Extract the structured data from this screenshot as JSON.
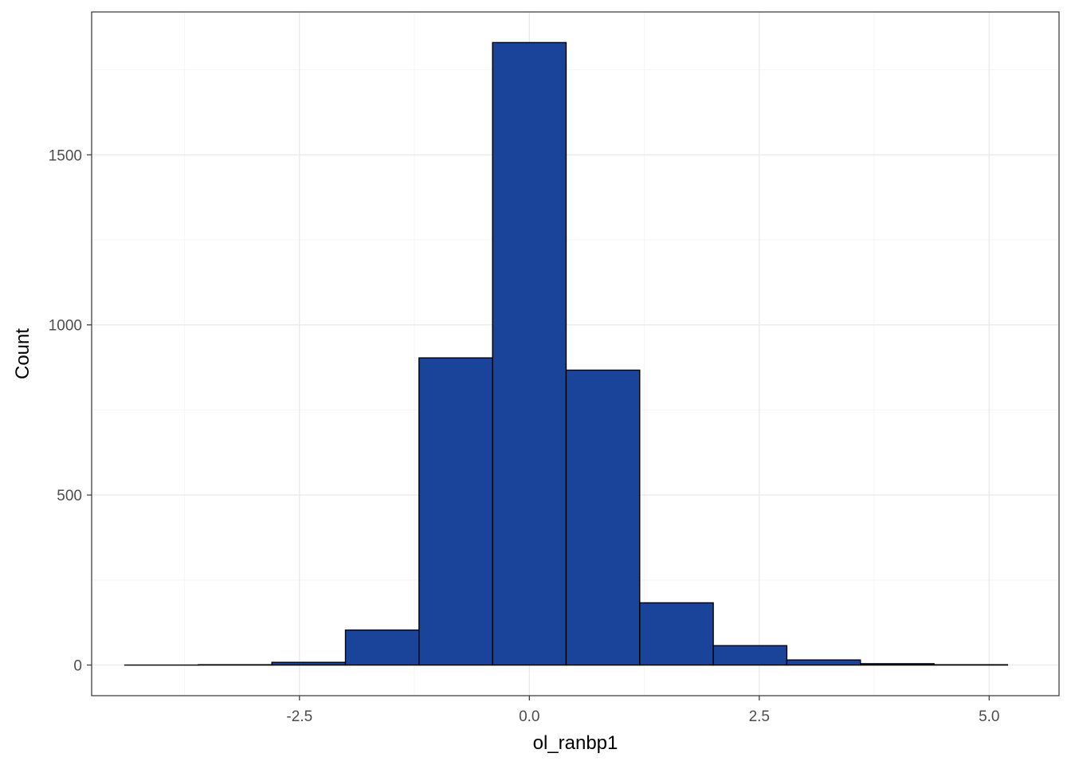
{
  "chart_data": {
    "type": "bar",
    "subtype": "histogram",
    "title": "",
    "xlabel": "ol_ranbp1",
    "ylabel": "Count",
    "xlim": [
      -4.76,
      5.76
    ],
    "ylim": [
      -90,
      1920
    ],
    "x_ticks": [
      {
        "value": -2.5,
        "label": "-2.5"
      },
      {
        "value": 0.0,
        "label": "0.0"
      },
      {
        "value": 2.5,
        "label": "2.5"
      },
      {
        "value": 5.0,
        "label": "5.0"
      }
    ],
    "y_ticks": [
      {
        "value": 0,
        "label": "0"
      },
      {
        "value": 500,
        "label": "500"
      },
      {
        "value": 1000,
        "label": "1000"
      },
      {
        "value": 1500,
        "label": "1500"
      }
    ],
    "x_minor_ticks": [
      -3.75,
      -1.25,
      1.25,
      3.75
    ],
    "y_minor_ticks": [
      250,
      750,
      1250,
      1750
    ],
    "bin_width": 0.8,
    "bins": [
      {
        "x_start": -4.4,
        "x_end": -3.6,
        "count": 0
      },
      {
        "x_start": -3.6,
        "x_end": -2.8,
        "count": 1
      },
      {
        "x_start": -2.8,
        "x_end": -2.0,
        "count": 8
      },
      {
        "x_start": -2.0,
        "x_end": -1.2,
        "count": 103
      },
      {
        "x_start": -1.2,
        "x_end": -0.4,
        "count": 903
      },
      {
        "x_start": -0.4,
        "x_end": 0.4,
        "count": 1830
      },
      {
        "x_start": 0.4,
        "x_end": 1.2,
        "count": 867
      },
      {
        "x_start": 1.2,
        "x_end": 2.0,
        "count": 183
      },
      {
        "x_start": 2.0,
        "x_end": 2.8,
        "count": 57
      },
      {
        "x_start": 2.8,
        "x_end": 3.6,
        "count": 15
      },
      {
        "x_start": 3.6,
        "x_end": 4.4,
        "count": 4
      },
      {
        "x_start": 4.4,
        "x_end": 5.2,
        "count": 1
      }
    ],
    "grid": true,
    "legend": "none",
    "colors": {
      "bar_fill": "#1a4499",
      "bar_outline": "#000000",
      "panel_border": "#333333",
      "grid_major": "#ebebeb",
      "grid_minor": "#f5f5f5",
      "tick_label": "#4d4d4d",
      "axis_title": "#000000"
    }
  }
}
